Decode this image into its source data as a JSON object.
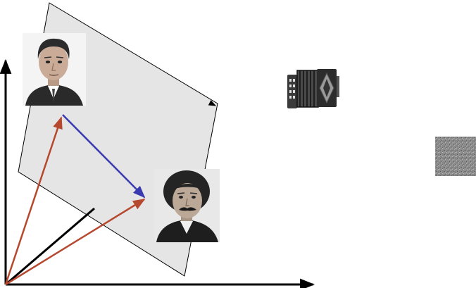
{
  "diagram": {
    "colors": {
      "background": "#ffffff",
      "plane_fill": "#e5e5e5",
      "plane_stroke": "#000000",
      "axis": "#000000",
      "vector_to_faces": "#b5482f",
      "difference_vector": "#3a3ab0",
      "origin_to_plane": "#000000"
    },
    "images": [
      {
        "id": "face-top",
        "icon": "portrait-photo-man-suit"
      },
      {
        "id": "face-bottom",
        "icon": "portrait-photo-man-mustache"
      },
      {
        "id": "accordion",
        "icon": "accordion-icon"
      },
      {
        "id": "noise",
        "icon": "noise-texture-image"
      }
    ]
  }
}
